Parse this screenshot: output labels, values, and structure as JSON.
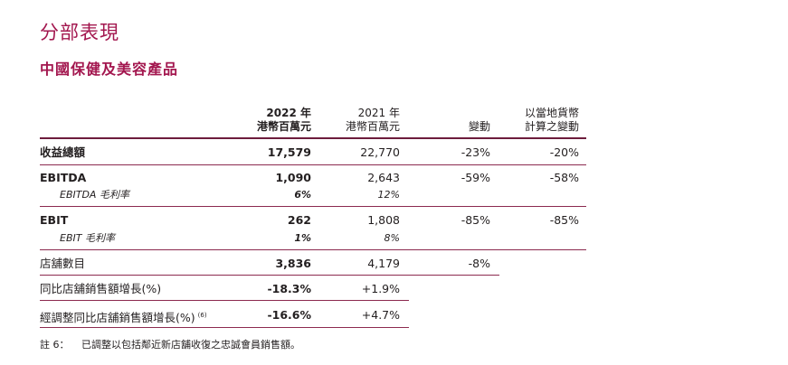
{
  "title": "分部表現",
  "subtitle": "中國保健及美容產品",
  "headers": {
    "col2022_year": "2022 年",
    "col2022_unit": "港幣百萬元",
    "col2021_year": "2021 年",
    "col2021_unit": "港幣百萬元",
    "change": "變動",
    "local_l1": "以當地貨幣",
    "local_l2": "計算之變動"
  },
  "rows": {
    "revenue": {
      "label": "收益總額",
      "v2022": "17,579",
      "v2021": "22,770",
      "change": "-23%",
      "local": "-20%"
    },
    "ebitda": {
      "label": "EBITDA",
      "v2022": "1,090",
      "v2021": "2,643",
      "change": "-59%",
      "local": "-58%"
    },
    "ebitda_margin": {
      "label": "EBITDA 毛利率",
      "v2022": "6%",
      "v2021": "12%"
    },
    "ebit": {
      "label": "EBIT",
      "v2022": "262",
      "v2021": "1,808",
      "change": "-85%",
      "local": "-85%"
    },
    "ebit_margin": {
      "label": "EBIT 毛利率",
      "v2022": "1%",
      "v2021": "8%"
    },
    "stores": {
      "label": "店舖數目",
      "v2022": "3,836",
      "v2021": "4,179",
      "change": "-8%"
    },
    "lfl": {
      "label": "同比店舖銷售額增長(%)",
      "v2022": "-18.3%",
      "v2021": "+1.9%"
    },
    "lfl_adj": {
      "label": "經調整同比店舖銷售額增長(%)",
      "sup": "(6)",
      "v2022": "-16.6%",
      "v2021": "+4.7%"
    }
  },
  "footnote": {
    "label": "註 6：",
    "text": "已調整以包括鄰近新店舖收復之忠誠會員銷售額。"
  }
}
